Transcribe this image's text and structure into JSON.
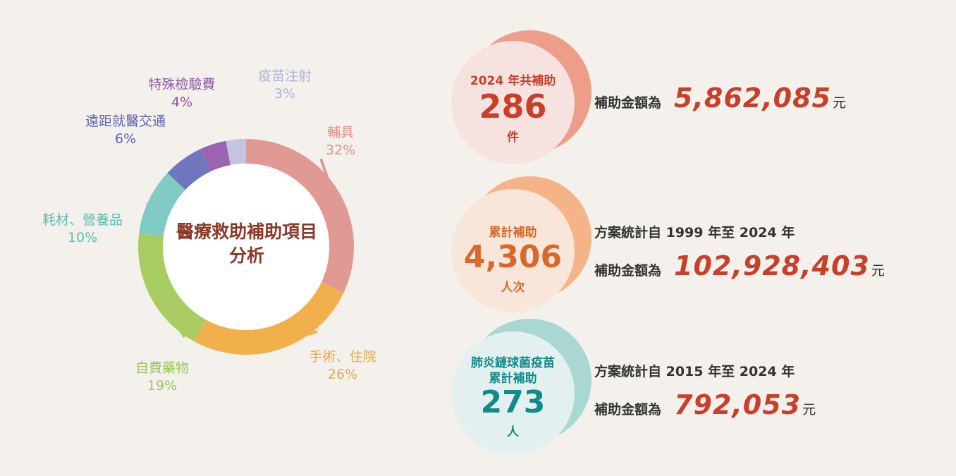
{
  "chart_data": {
    "type": "pie",
    "title": "醫療救助補助項目分析",
    "categories": [
      "輔具",
      "手術、住院",
      "自費藥物",
      "耗材、營養品",
      "遠距就醫交通",
      "特殊檢驗費",
      "疫苗注射"
    ],
    "values": [
      32,
      26,
      19,
      10,
      6,
      4,
      3
    ],
    "value_labels": [
      "32%",
      "26%",
      "19%",
      "10%",
      "6%",
      "4%",
      "3%"
    ],
    "colors": [
      "#e19a93",
      "#f2b04c",
      "#a8cc62",
      "#7fcbc4",
      "#6f76c0",
      "#9b63b0",
      "#c3c5de"
    ],
    "label_colors": [
      "#e0908a",
      "#e8a84a",
      "#9cc45a",
      "#5bbdb5",
      "#5a62b2",
      "#8e56a6",
      "#b0b2d8"
    ]
  },
  "stats": [
    {
      "bubble_title": "2024 年共補助",
      "bubble_number": "286",
      "bubble_unit": "件",
      "amount_label": "補助金額為",
      "amount": "5,862,085",
      "amount_unit": "元",
      "color": "#c8402b",
      "bubble_bg": "#f6e3df",
      "bubble_back": "#ee9d8a"
    },
    {
      "bubble_title": "累計補助",
      "bubble_number": "4,306",
      "bubble_unit": "人次",
      "period": "方案統計自 1999 年至 2024 年",
      "amount_label": "補助金額為",
      "amount": "102,928,403",
      "amount_unit": "元",
      "color": "#d9692a",
      "bubble_bg": "#f8e6da",
      "bubble_back": "#f4b488"
    },
    {
      "bubble_title": "肺炎鏈球菌疫苗",
      "bubble_title2": "累計補助",
      "bubble_number": "273",
      "bubble_unit": "人",
      "period": "方案統計自 2015 年至 2024 年",
      "amount_label": "補助金額為",
      "amount": "792,053",
      "amount_unit": "元",
      "color": "#138a8a",
      "bubble_bg": "#e2f1f0",
      "bubble_back": "#a9d8d3"
    }
  ]
}
